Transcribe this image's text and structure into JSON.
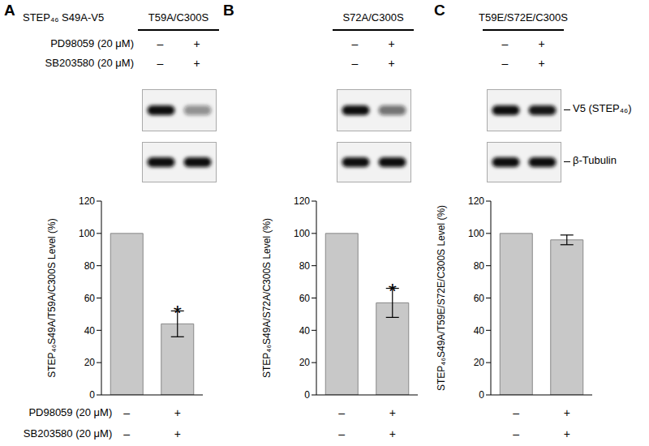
{
  "figure_label": "STEP₄₆ S49A-V5",
  "blot_labels": [
    "V5 (STEP₄₆)",
    "β-Tubulin"
  ],
  "chart_data": [
    {
      "type": "bar",
      "panel": "A",
      "title": "T59A/C300S",
      "y_label": "STEP₄₆S49A/T59A/C300S Level (%)",
      "categories": [
        null,
        null
      ],
      "values": [
        100,
        44
      ],
      "errors": [
        0,
        8
      ],
      "significance": [
        null,
        "*"
      ],
      "ylim": [
        0,
        120
      ],
      "yticks": [
        0,
        20,
        40,
        60,
        80,
        100,
        120
      ],
      "color": "#c8c8c8",
      "tick_labels": "y",
      "treatments": [
        {
          "label": "PD98059 (20 μM)",
          "marks": [
            "–",
            "+"
          ]
        },
        {
          "label": "SB203580 (20 μM)",
          "marks": [
            "–",
            "+"
          ]
        }
      ]
    },
    {
      "type": "bar",
      "panel": "B",
      "title": "S72A/C300S",
      "y_label": "STEP₄₆S49A/S72A/C300S Level (%)",
      "categories": [
        null,
        null
      ],
      "values": [
        100,
        57
      ],
      "errors": [
        0,
        9
      ],
      "significance": [
        null,
        "*"
      ],
      "ylim": [
        0,
        120
      ],
      "yticks": [
        0,
        20,
        40,
        60,
        80,
        100,
        120
      ],
      "color": "#c8c8c8",
      "tick_labels": "y",
      "treatments": [
        {
          "marks": [
            "–",
            "+"
          ]
        },
        {
          "marks": [
            "–",
            "+"
          ]
        }
      ]
    },
    {
      "type": "bar",
      "panel": "C",
      "title": "T59E/S72E/C300S",
      "y_label": "STEP₄₆S49A/T59E/S72E/C300S Level (%)",
      "categories": [
        null,
        null
      ],
      "values": [
        100,
        96
      ],
      "errors": [
        0,
        3
      ],
      "significance": [
        null,
        null
      ],
      "ylim": [
        0,
        120
      ],
      "yticks": [
        0,
        20,
        40,
        60,
        80,
        100,
        120
      ],
      "color": "#c8c8c8",
      "tick_labels": "y",
      "treatments": [
        {
          "marks": [
            "–",
            "+"
          ]
        },
        {
          "marks": [
            "–",
            "+"
          ]
        }
      ]
    }
  ]
}
